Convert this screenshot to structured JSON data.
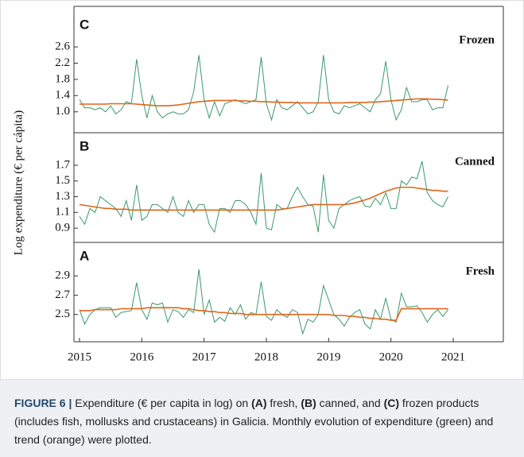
{
  "ylabel": "Log expenditure (€ per cápita)",
  "chart_data": [
    {
      "type": "line",
      "panel": "C",
      "title": "Frozen",
      "xlim": [
        2015,
        2021
      ],
      "ylim": [
        0.7,
        2.7
      ],
      "yticks": [
        {
          "value": 1.0,
          "label": "1.0"
        },
        1.4,
        1.8,
        2.2,
        2.6
      ],
      "x": [
        2015,
        2015.083,
        2015.167,
        2015.25,
        2015.333,
        2015.417,
        2015.5,
        2015.583,
        2015.667,
        2015.75,
        2015.833,
        2015.917,
        2016,
        2016.083,
        2016.167,
        2016.25,
        2016.333,
        2016.417,
        2016.5,
        2016.583,
        2016.667,
        2016.75,
        2016.833,
        2016.917,
        2017,
        2017.083,
        2017.167,
        2017.25,
        2017.333,
        2017.417,
        2017.5,
        2017.583,
        2017.667,
        2017.75,
        2017.833,
        2017.917,
        2018,
        2018.083,
        2018.167,
        2018.25,
        2018.333,
        2018.417,
        2018.5,
        2018.583,
        2018.667,
        2018.75,
        2018.833,
        2018.917,
        2019,
        2019.083,
        2019.167,
        2019.25,
        2019.333,
        2019.417,
        2019.5,
        2019.583,
        2019.667,
        2019.75,
        2019.833,
        2019.917,
        2020,
        2020.083,
        2020.167,
        2020.25,
        2020.333,
        2020.417,
        2020.5,
        2020.583,
        2020.667,
        2020.75,
        2020.833,
        2020.917
      ],
      "series": [
        {
          "color": "#3a9a6a",
          "values": [
            1.3,
            1.1,
            1.1,
            1.05,
            1.1,
            1.0,
            1.15,
            0.95,
            1.05,
            1.25,
            1.2,
            2.3,
            1.4,
            0.85,
            1.4,
            1.0,
            0.85,
            0.95,
            1.0,
            0.95,
            0.95,
            1.05,
            1.5,
            2.4,
            1.3,
            0.85,
            1.25,
            0.9,
            1.2,
            1.25,
            1.3,
            1.25,
            1.2,
            1.25,
            1.3,
            2.35,
            1.2,
            0.8,
            1.3,
            1.1,
            1.05,
            1.15,
            1.25,
            1.1,
            0.95,
            1.0,
            1.25,
            2.4,
            1.3,
            1.0,
            0.95,
            1.15,
            1.1,
            1.15,
            1.2,
            1.1,
            1.0,
            1.3,
            1.45,
            2.25,
            1.3,
            0.8,
            1.05,
            1.6,
            1.25,
            1.25,
            1.3,
            1.3,
            1.05,
            1.1,
            1.1,
            1.65
          ]
        },
        {
          "color": "#e0661a",
          "values": [
            1.19,
            1.19,
            1.19,
            1.19,
            1.19,
            1.19,
            1.2,
            1.2,
            1.2,
            1.2,
            1.2,
            1.19,
            1.18,
            1.17,
            1.16,
            1.15,
            1.15,
            1.15,
            1.16,
            1.17,
            1.19,
            1.21,
            1.23,
            1.25,
            1.26,
            1.27,
            1.28,
            1.28,
            1.28,
            1.28,
            1.28,
            1.27,
            1.27,
            1.26,
            1.26,
            1.25,
            1.25,
            1.24,
            1.24,
            1.23,
            1.23,
            1.23,
            1.22,
            1.22,
            1.22,
            1.22,
            1.22,
            1.22,
            1.22,
            1.22,
            1.22,
            1.22,
            1.23,
            1.23,
            1.23,
            1.23,
            1.24,
            1.24,
            1.25,
            1.26,
            1.27,
            1.28,
            1.29,
            1.3,
            1.31,
            1.32,
            1.32,
            1.32,
            1.31,
            1.31,
            1.3,
            1.29
          ]
        }
      ]
    },
    {
      "type": "line",
      "panel": "B",
      "title": "Canned",
      "xlim": [
        2015,
        2021
      ],
      "ylim": [
        0.8,
        1.8
      ],
      "yticks": [
        0.9,
        1.1,
        1.3,
        1.5,
        1.7
      ],
      "x": [
        2015,
        2015.083,
        2015.167,
        2015.25,
        2015.333,
        2015.417,
        2015.5,
        2015.583,
        2015.667,
        2015.75,
        2015.833,
        2015.917,
        2016,
        2016.083,
        2016.167,
        2016.25,
        2016.333,
        2016.417,
        2016.5,
        2016.583,
        2016.667,
        2016.75,
        2016.833,
        2016.917,
        2017,
        2017.083,
        2017.167,
        2017.25,
        2017.333,
        2017.417,
        2017.5,
        2017.583,
        2017.667,
        2017.75,
        2017.833,
        2017.917,
        2018,
        2018.083,
        2018.167,
        2018.25,
        2018.333,
        2018.417,
        2018.5,
        2018.583,
        2018.667,
        2018.75,
        2018.833,
        2018.917,
        2019,
        2019.083,
        2019.167,
        2019.25,
        2019.333,
        2019.417,
        2019.5,
        2019.583,
        2019.667,
        2019.75,
        2019.833,
        2019.917,
        2020,
        2020.083,
        2020.167,
        2020.25,
        2020.333,
        2020.417,
        2020.5,
        2020.583,
        2020.667,
        2020.75,
        2020.833,
        2020.917
      ],
      "series": [
        {
          "color": "#3a9a6a",
          "values": [
            1.05,
            0.95,
            1.15,
            1.1,
            1.3,
            1.25,
            1.2,
            1.15,
            1.05,
            1.25,
            1.0,
            1.45,
            1.0,
            1.05,
            1.2,
            1.2,
            1.15,
            1.1,
            1.3,
            1.1,
            1.05,
            1.25,
            1.1,
            1.2,
            1.2,
            0.95,
            0.85,
            1.15,
            1.15,
            1.1,
            1.25,
            1.25,
            1.2,
            1.1,
            0.95,
            1.6,
            0.9,
            0.88,
            1.2,
            1.15,
            1.15,
            1.3,
            1.42,
            1.3,
            1.2,
            1.18,
            0.85,
            1.58,
            1.0,
            0.9,
            1.15,
            1.2,
            1.25,
            1.28,
            1.3,
            1.18,
            1.17,
            1.28,
            1.2,
            1.35,
            1.15,
            1.15,
            1.5,
            1.45,
            1.55,
            1.53,
            1.75,
            1.35,
            1.25,
            1.2,
            1.17,
            1.3
          ]
        },
        {
          "color": "#e0661a",
          "values": [
            1.2,
            1.19,
            1.18,
            1.17,
            1.16,
            1.15,
            1.15,
            1.14,
            1.14,
            1.14,
            1.13,
            1.13,
            1.13,
            1.13,
            1.13,
            1.13,
            1.13,
            1.13,
            1.13,
            1.13,
            1.13,
            1.13,
            1.13,
            1.13,
            1.13,
            1.13,
            1.13,
            1.13,
            1.13,
            1.13,
            1.13,
            1.13,
            1.13,
            1.13,
            1.13,
            1.13,
            1.13,
            1.13,
            1.13,
            1.14,
            1.15,
            1.16,
            1.17,
            1.18,
            1.19,
            1.2,
            1.2,
            1.2,
            1.2,
            1.2,
            1.2,
            1.2,
            1.21,
            1.22,
            1.24,
            1.26,
            1.28,
            1.31,
            1.34,
            1.37,
            1.39,
            1.41,
            1.42,
            1.42,
            1.42,
            1.41,
            1.4,
            1.39,
            1.38,
            1.38,
            1.37,
            1.37
          ]
        }
      ]
    },
    {
      "type": "line",
      "panel": "A",
      "title": "Fresh",
      "xlim": [
        2015,
        2021
      ],
      "ylim": [
        2.25,
        3.0
      ],
      "yticks": [
        2.5,
        2.7,
        2.9
      ],
      "xticks": [
        2015,
        2016,
        2017,
        2018,
        2019,
        2020,
        2021
      ],
      "x": [
        2015,
        2015.083,
        2015.167,
        2015.25,
        2015.333,
        2015.417,
        2015.5,
        2015.583,
        2015.667,
        2015.75,
        2015.833,
        2015.917,
        2016,
        2016.083,
        2016.167,
        2016.25,
        2016.333,
        2016.417,
        2016.5,
        2016.583,
        2016.667,
        2016.75,
        2016.833,
        2016.917,
        2017,
        2017.083,
        2017.167,
        2017.25,
        2017.333,
        2017.417,
        2017.5,
        2017.583,
        2017.667,
        2017.75,
        2017.833,
        2017.917,
        2018,
        2018.083,
        2018.167,
        2018.25,
        2018.333,
        2018.417,
        2018.5,
        2018.583,
        2018.667,
        2018.75,
        2018.833,
        2018.917,
        2019,
        2019.083,
        2019.167,
        2019.25,
        2019.333,
        2019.417,
        2019.5,
        2019.583,
        2019.667,
        2019.75,
        2019.833,
        2019.917,
        2020,
        2020.083,
        2020.167,
        2020.25,
        2020.333,
        2020.417,
        2020.5,
        2020.583,
        2020.667,
        2020.75,
        2020.833,
        2020.917
      ],
      "series": [
        {
          "color": "#3a9a6a",
          "values": [
            2.55,
            2.4,
            2.5,
            2.55,
            2.57,
            2.57,
            2.57,
            2.47,
            2.52,
            2.53,
            2.54,
            2.83,
            2.55,
            2.45,
            2.62,
            2.6,
            2.62,
            2.42,
            2.55,
            2.53,
            2.47,
            2.55,
            2.52,
            2.97,
            2.5,
            2.65,
            2.42,
            2.47,
            2.43,
            2.57,
            2.5,
            2.6,
            2.45,
            2.52,
            2.5,
            2.84,
            2.48,
            2.44,
            2.55,
            2.5,
            2.47,
            2.55,
            2.52,
            2.3,
            2.45,
            2.42,
            2.5,
            2.8,
            2.65,
            2.5,
            2.45,
            2.38,
            2.47,
            2.52,
            2.55,
            2.4,
            2.35,
            2.55,
            2.45,
            2.67,
            2.45,
            2.42,
            2.72,
            2.58,
            2.58,
            2.59,
            2.52,
            2.42,
            2.5,
            2.55,
            2.48,
            2.55
          ]
        },
        {
          "color": "#e0661a",
          "values": [
            2.54,
            2.54,
            2.54,
            2.55,
            2.55,
            2.55,
            2.55,
            2.55,
            2.56,
            2.56,
            2.56,
            2.56,
            2.56,
            2.57,
            2.57,
            2.57,
            2.57,
            2.57,
            2.57,
            2.57,
            2.56,
            2.56,
            2.55,
            2.54,
            2.54,
            2.53,
            2.53,
            2.52,
            2.52,
            2.51,
            2.51,
            2.51,
            2.5,
            2.5,
            2.5,
            2.5,
            2.5,
            2.5,
            2.5,
            2.5,
            2.5,
            2.5,
            2.5,
            2.5,
            2.5,
            2.5,
            2.5,
            2.5,
            2.5,
            2.49,
            2.49,
            2.49,
            2.48,
            2.48,
            2.47,
            2.47,
            2.46,
            2.46,
            2.45,
            2.45,
            2.44,
            2.44,
            2.56,
            2.56,
            2.56,
            2.56,
            2.56,
            2.56,
            2.56,
            2.56,
            2.56,
            2.56
          ]
        }
      ]
    }
  ],
  "caption": [
    {
      "text": "FIGURE 6 |",
      "bold": true
    },
    {
      "text": " Expenditure (€ per capita in log) on ",
      "bold": false
    },
    {
      "text": "(A)",
      "bold": true
    },
    {
      "text": " fresh, ",
      "bold": false
    },
    {
      "text": "(B)",
      "bold": true
    },
    {
      "text": " canned, and ",
      "bold": false
    },
    {
      "text": "(C)",
      "bold": true
    },
    {
      "text": " frozen products (includes fish, mollusks and crustaceans) in Galicia. Monthly evolution of expenditure (green) and trend (orange) were plotted.",
      "bold": false
    }
  ]
}
